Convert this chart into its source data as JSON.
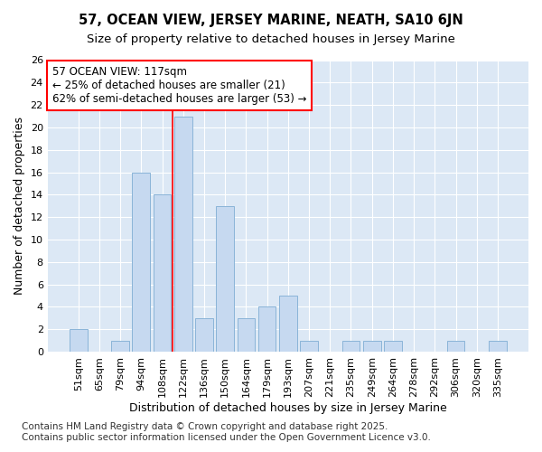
{
  "title": "57, OCEAN VIEW, JERSEY MARINE, NEATH, SA10 6JN",
  "subtitle": "Size of property relative to detached houses in Jersey Marine",
  "xlabel": "Distribution of detached houses by size in Jersey Marine",
  "ylabel": "Number of detached properties",
  "categories": [
    "51sqm",
    "65sqm",
    "79sqm",
    "94sqm",
    "108sqm",
    "122sqm",
    "136sqm",
    "150sqm",
    "164sqm",
    "179sqm",
    "193sqm",
    "207sqm",
    "221sqm",
    "235sqm",
    "249sqm",
    "264sqm",
    "278sqm",
    "292sqm",
    "306sqm",
    "320sqm",
    "335sqm"
  ],
  "values": [
    2,
    0,
    1,
    16,
    14,
    21,
    3,
    13,
    3,
    4,
    5,
    1,
    0,
    1,
    1,
    1,
    0,
    0,
    1,
    0,
    1
  ],
  "bar_color": "#c6d9f0",
  "bar_edge_color": "#8ab4d8",
  "red_line_index": 4.5,
  "annotation_title": "57 OCEAN VIEW: 117sqm",
  "annotation_line1": "← 25% of detached houses are smaller (21)",
  "annotation_line2": "62% of semi-detached houses are larger (53) →",
  "ylim": [
    0,
    26
  ],
  "yticks": [
    0,
    2,
    4,
    6,
    8,
    10,
    12,
    14,
    16,
    18,
    20,
    22,
    24,
    26
  ],
  "footer_line1": "Contains HM Land Registry data © Crown copyright and database right 2025.",
  "footer_line2": "Contains public sector information licensed under the Open Government Licence v3.0.",
  "fig_bg_color": "#ffffff",
  "plot_bg_color": "#dce8f5",
  "grid_color": "#ffffff",
  "title_fontsize": 10.5,
  "subtitle_fontsize": 9.5,
  "axis_label_fontsize": 9,
  "tick_fontsize": 8,
  "annotation_fontsize": 8.5,
  "footer_fontsize": 7.5
}
